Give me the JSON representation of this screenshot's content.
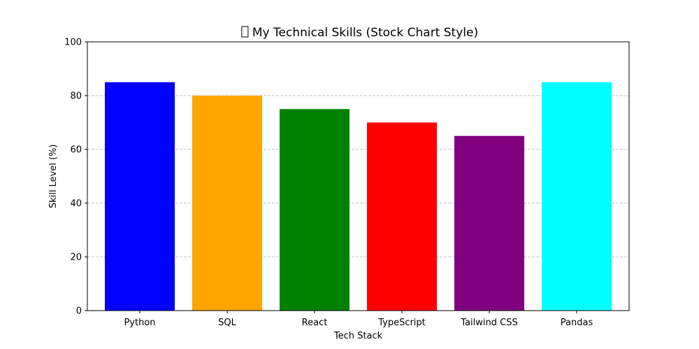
{
  "chart_data": {
    "type": "bar",
    "title": "My Technical Skills (Stock Chart Style)",
    "title_glyph": "missing-glyph-icon",
    "xlabel": "Tech Stack",
    "ylabel": "Skill Level (%)",
    "ylim": [
      0,
      100
    ],
    "yticks": [
      0,
      20,
      40,
      60,
      80,
      100
    ],
    "grid": {
      "axis": "y",
      "style": "dashed",
      "color": "#c0c0c0"
    },
    "legend": "none",
    "categories": [
      "Python",
      "SQL",
      "React",
      "TypeScript",
      "Tailwind CSS",
      "Pandas"
    ],
    "values": [
      85,
      80,
      75,
      70,
      65,
      85
    ],
    "colors": [
      "#0000ff",
      "#ffa500",
      "#008000",
      "#ff0000",
      "#800080",
      "#00ffff"
    ]
  }
}
